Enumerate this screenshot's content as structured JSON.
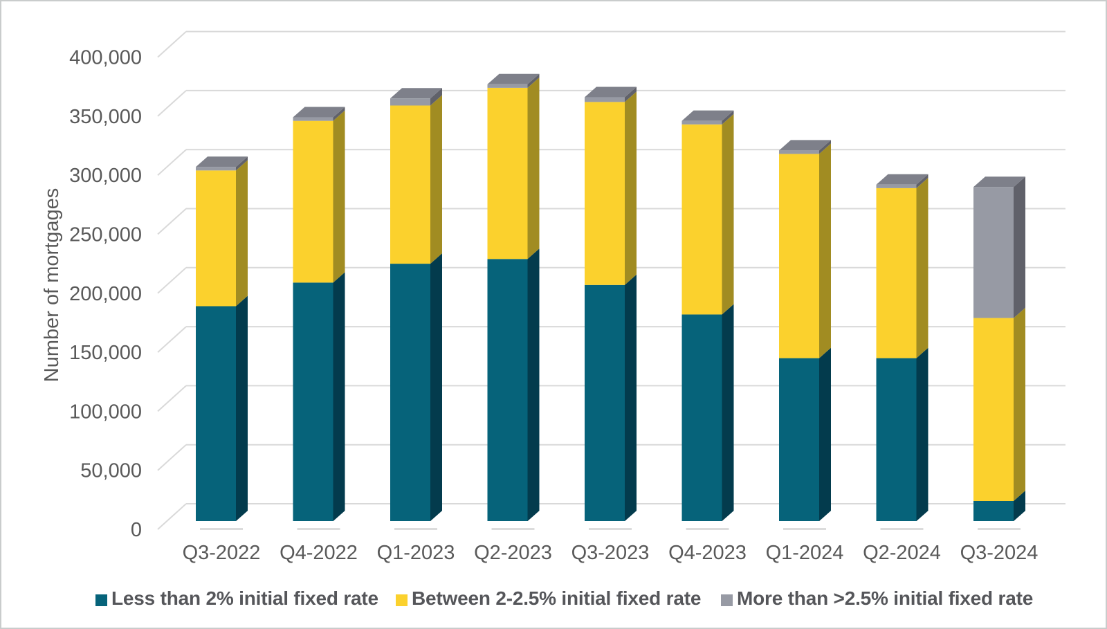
{
  "chart": {
    "y_axis_title": "Number of mortgages",
    "y_tick_labels": [
      "0",
      "50,000",
      "100,000",
      "150,000",
      "200,000",
      "250,000",
      "300,000",
      "350,000",
      "400,000"
    ],
    "grid_color": "#d9d9d9",
    "text_color": "#595959",
    "legend_text_color": "#55565a"
  },
  "chart_data": {
    "type": "bar",
    "subtype": "stacked-3d-column",
    "title": "",
    "xlabel": "",
    "ylabel": "Number of mortgages",
    "ylim": [
      0,
      400000
    ],
    "ytick_step": 50000,
    "grid": true,
    "legend_position": "bottom",
    "categories": [
      "Q3-2022",
      "Q4-2022",
      "Q1-2023",
      "Q2-2023",
      "Q3-2023",
      "Q4-2023",
      "Q1-2024",
      "Q2-2024",
      "Q3-2024"
    ],
    "series": [
      {
        "name": "Less than 2% initial fixed rate",
        "color": "#06637a",
        "side_color": "#033b4d",
        "values": [
          182000,
          202000,
          218000,
          222000,
          200000,
          175000,
          138000,
          138000,
          17000
        ]
      },
      {
        "name": "Between 2-2.5% initial fixed rate",
        "color": "#fbd12d",
        "side_color": "#a18c22",
        "values": [
          115000,
          137000,
          134000,
          145000,
          155000,
          161000,
          173000,
          144000,
          155000
        ]
      },
      {
        "name": "More than >2.5% initial fixed rate",
        "color": "#979aa4",
        "side_color": "#60616a",
        "top_color": "#7e808a",
        "values": [
          3000,
          3000,
          6000,
          3000,
          4000,
          3000,
          3000,
          3000,
          111000
        ]
      }
    ],
    "totals": [
      300000,
      342000,
      358000,
      370000,
      359000,
      339000,
      314000,
      285000,
      283000
    ]
  }
}
